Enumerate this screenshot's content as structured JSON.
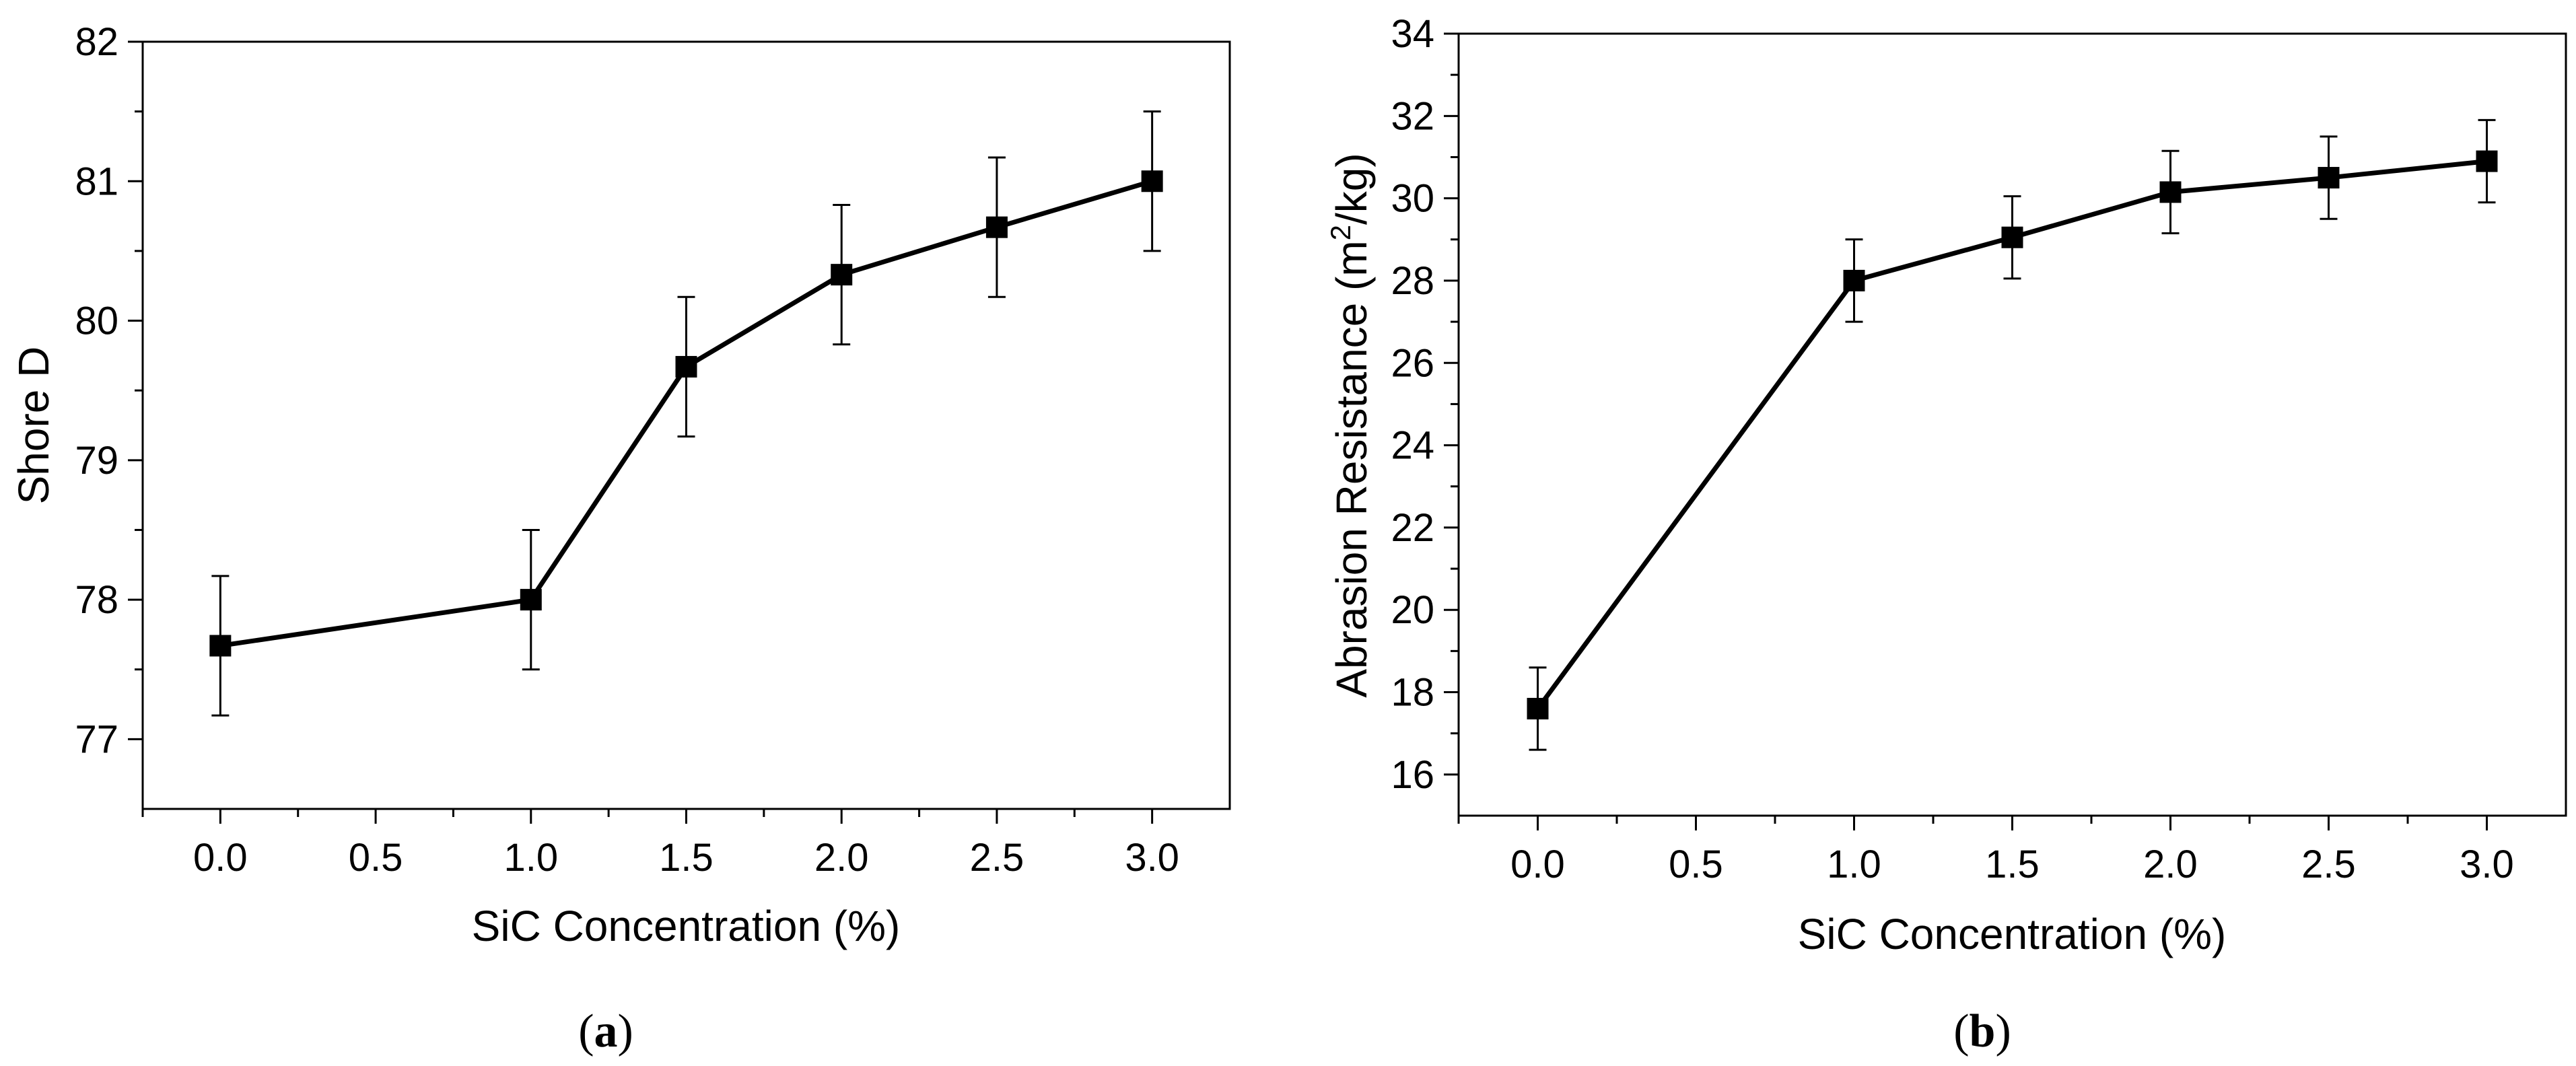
{
  "chart_data": [
    {
      "type": "line",
      "panel_label": "a",
      "xlabel": "SiC Concentration (%)",
      "ylabel": "Shore D",
      "xlim": [
        -0.25,
        3.25
      ],
      "ylim": [
        76.5,
        82
      ],
      "xticks": [
        "0.0",
        "0.5",
        "1.0",
        "1.5",
        "2.0",
        "2.5",
        "3.0"
      ],
      "yticks": [
        "77",
        "78",
        "79",
        "80",
        "81",
        "82"
      ],
      "grid": false,
      "marker": "filled-square",
      "series": [
        {
          "name": "Shore D",
          "x": [
            0.0,
            1.0,
            1.5,
            2.0,
            2.5,
            3.0
          ],
          "y": [
            77.67,
            78.0,
            79.67,
            80.33,
            80.67,
            81.0
          ],
          "err": [
            0.5,
            0.5,
            0.5,
            0.5,
            0.5,
            0.5
          ]
        }
      ]
    },
    {
      "type": "line",
      "panel_label": "b",
      "xlabel": "SiC Concentration (%)",
      "ylabel_main": "Abrasion Resistance (m",
      "ylabel_sup": "2",
      "ylabel_tail": "/kg)",
      "xlim": [
        -0.25,
        3.25
      ],
      "ylim": [
        15,
        34
      ],
      "xticks": [
        "0.0",
        "0.5",
        "1.0",
        "1.5",
        "2.0",
        "2.5",
        "3.0"
      ],
      "yticks": [
        "16",
        "18",
        "20",
        "22",
        "24",
        "26",
        "28",
        "30",
        "32",
        "34"
      ],
      "grid": false,
      "marker": "filled-square",
      "series": [
        {
          "name": "Abrasion Resistance",
          "x": [
            0.0,
            1.0,
            1.5,
            2.0,
            2.5,
            3.0
          ],
          "y": [
            17.6,
            28.0,
            29.05,
            30.15,
            30.5,
            30.9
          ],
          "err": [
            1.0,
            1.0,
            1.0,
            1.0,
            1.0,
            1.0
          ]
        }
      ]
    }
  ]
}
